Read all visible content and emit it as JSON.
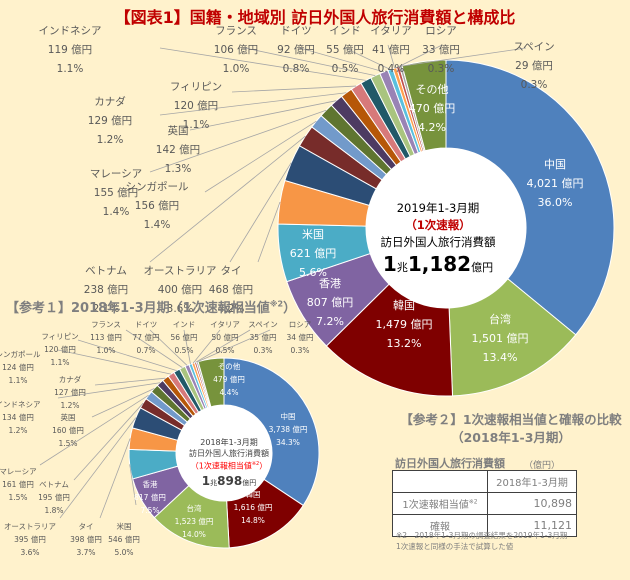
{
  "title": "【図表1】国籍・地域別 訪日外国人旅行消費額と構成比",
  "main_center": {
    "period": "2019年1-3月期",
    "flag": "（1次速報）",
    "label": "訪日外国人旅行消費額",
    "total_cho": "1",
    "cho_unit": "兆",
    "total_oku": "1,182",
    "oku_unit": "億円"
  },
  "ref1": {
    "title": "【参考１】2018年1-3月期（1次速報相当値",
    "title_sup": "※2",
    "title_close": "）",
    "center": {
      "period": "2018年1-3月期",
      "label": "訪日外国人旅行消費額",
      "flag": "（1次速報相当値",
      "flag_sup": "※2",
      "flag_close": "）",
      "total_cho": "1",
      "cho_unit": "兆",
      "total_oku": "898",
      "oku_unit": "億円"
    }
  },
  "ref2": {
    "title_line1": "【参考２】1次速報相当値と確報の比較",
    "title_line2": "（2018年1-3月期）",
    "subtitle": "訪日外国人旅行消費額",
    "unit": "（億円）",
    "header": [
      "",
      "2018年1-3月期"
    ],
    "rows": [
      {
        "label": "1次速報相当値",
        "sup": "※2",
        "value": "10,898"
      },
      {
        "label": "確報",
        "sup": "",
        "value": "11,121"
      }
    ],
    "note_line1": "※2　2018年1-3月期の調査結果を2019年1-3月期",
    "note_line2": "1次速報と同様の手法で試算した値"
  },
  "chart_data": [
    {
      "type": "pie",
      "variant": "donut",
      "title": "2019年1-3月期（1次速報）訪日外国人旅行消費額 1兆1,182億円",
      "unit": "億円",
      "categories": [
        "中国",
        "台湾",
        "韓国",
        "香港",
        "米国",
        "タイ",
        "オーストラリア",
        "ベトナム",
        "シンガポール",
        "マレーシア",
        "英国",
        "カナダ",
        "フィリピン",
        "インドネシア",
        "フランス",
        "ドイツ",
        "インド",
        "イタリア",
        "ロシア",
        "スペイン",
        "その他"
      ],
      "values": [
        4021,
        1501,
        1479,
        807,
        621,
        468,
        400,
        238,
        156,
        155,
        142,
        129,
        120,
        119,
        106,
        92,
        55,
        41,
        33,
        29,
        470
      ],
      "percents": [
        36.0,
        13.4,
        13.2,
        7.2,
        5.6,
        4.2,
        3.6,
        2.1,
        1.4,
        1.4,
        1.3,
        1.2,
        1.1,
        1.1,
        1.0,
        0.8,
        0.5,
        0.4,
        0.3,
        0.3,
        4.2
      ],
      "value_labels": [
        "4,021 億円",
        "1,501 億円",
        "1,479 億円",
        "807 億円",
        "621 億円",
        "468 億円",
        "400 億円",
        "238 億円",
        "156 億円",
        "155 億円",
        "142 億円",
        "129 億円",
        "120 億円",
        "119 億円",
        "106 億円",
        "92 億円",
        "55 億円",
        "41 億円",
        "33 億円",
        "29 億円",
        "470 億円"
      ],
      "pct_labels": [
        "36.0%",
        "13.4%",
        "13.2%",
        "7.2%",
        "5.6%",
        "4.2%",
        "3.6%",
        "2.1%",
        "1.4%",
        "1.4%",
        "1.3%",
        "1.2%",
        "1.1%",
        "1.1%",
        "1.0%",
        "0.8%",
        "0.5%",
        "0.4%",
        "0.3%",
        "0.3%",
        "4.2%"
      ],
      "colors": [
        "#4F81BD",
        "#9BBB59",
        "#7F0000",
        "#8064A2",
        "#4BACC6",
        "#F79646",
        "#2C4D75",
        "#772C2A",
        "#729ACA",
        "#5F7530",
        "#4D3B62",
        "#B65708",
        "#D7797A",
        "#215968",
        "#A9C47F",
        "#9983B5",
        "#5BC0DE",
        "#FFA04D",
        "#C0504D",
        "#A5A5A5",
        "#77933C"
      ]
    },
    {
      "type": "pie",
      "variant": "donut",
      "title": "2018年1-3月期 訪日外国人旅行消費額（1次速報相当値※2）1兆898億円",
      "unit": "億円",
      "categories": [
        "中国",
        "韓国",
        "台湾",
        "香港",
        "米国",
        "タイ",
        "オーストラリア",
        "ベトナム",
        "マレーシア",
        "英国",
        "インドネシア",
        "カナダ",
        "シンガポール",
        "フィリピン",
        "フランス",
        "ドイツ",
        "インド",
        "イタリア",
        "スペイン",
        "ロシア",
        "その他"
      ],
      "values": [
        3738,
        1616,
        1523,
        817,
        546,
        398,
        395,
        195,
        161,
        160,
        134,
        127,
        124,
        120,
        113,
        77,
        56,
        50,
        35,
        34,
        479
      ],
      "percents": [
        34.3,
        14.8,
        14.0,
        7.5,
        5.0,
        3.7,
        3.6,
        1.8,
        1.5,
        1.5,
        1.2,
        1.2,
        1.1,
        1.1,
        1.0,
        0.7,
        0.5,
        0.5,
        0.3,
        0.3,
        4.4
      ],
      "value_labels": [
        "3,738 億円",
        "1,616 億円",
        "1,523 億円",
        "817 億円",
        "546 億円",
        "398 億円",
        "395 億円",
        "195 億円",
        "161 億円",
        "160 億円",
        "134 億円",
        "127 億円",
        "124 億円",
        "120 億円",
        "113 億円",
        "77 億円",
        "56 億円",
        "50 億円",
        "35 億円",
        "34 億円",
        "479 億円"
      ],
      "pct_labels": [
        "34.3%",
        "14.8%",
        "14.0%",
        "7.5%",
        "5.0%",
        "3.7%",
        "3.6%",
        "1.8%",
        "1.5%",
        "1.5%",
        "1.2%",
        "1.2%",
        "1.1%",
        "1.1%",
        "1.0%",
        "0.7%",
        "0.5%",
        "0.5%",
        "0.3%",
        "0.3%",
        "4.4%"
      ],
      "colors": [
        "#4F81BD",
        "#7F0000",
        "#9BBB59",
        "#8064A2",
        "#4BACC6",
        "#F79646",
        "#2C4D75",
        "#772C2A",
        "#729ACA",
        "#5F7530",
        "#4D3B62",
        "#B65708",
        "#D7797A",
        "#215968",
        "#A9C47F",
        "#9983B5",
        "#5BC0DE",
        "#FFA04D",
        "#C0504D",
        "#A5A5A5",
        "#77933C"
      ]
    }
  ]
}
